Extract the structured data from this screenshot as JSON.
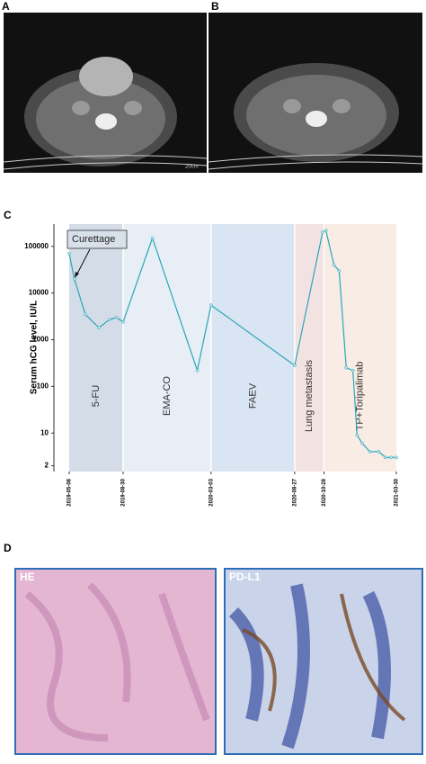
{
  "panel_labels": [
    "A",
    "B",
    "C",
    "D"
  ],
  "images": {
    "scale_text": "20cm",
    "he_label": "HE",
    "pdl1_label": "PD-L1"
  },
  "chart_data": {
    "type": "line",
    "y_label": "Serum hCG level, IU/L",
    "annotation": "Curettage",
    "log_scale": true,
    "xlim": [
      "2019-05-08",
      "2021-03-30"
    ],
    "xticks": [
      "2019-05-08",
      "2019-08-30",
      "2020-03-03",
      "2020-08-27",
      "2020-10-28",
      "2021-03-30"
    ],
    "ylim": [
      1.5,
      300000
    ],
    "yticks": [
      2,
      10,
      100,
      1000,
      10000,
      100000
    ],
    "phases": [
      {
        "name": "5-FU",
        "start": "2019-05-08",
        "end": "2019-08-30",
        "color": "#d3dce7"
      },
      {
        "name": "EMA-CO",
        "start": "2019-08-30",
        "end": "2020-03-03",
        "color": "#e7eef6"
      },
      {
        "name": "FAEV",
        "start": "2020-03-03",
        "end": "2020-08-27",
        "color": "#d9e5f2"
      },
      {
        "name": "Lung metastasis",
        "start": "2020-08-27",
        "end": "2020-10-28",
        "color": "#f3e2e2"
      },
      {
        "name": "TP+Toripalimab",
        "start": "2020-10-28",
        "end": "2021-03-30",
        "color": "#f8ece5"
      }
    ],
    "x": [
      "2019-05-08",
      "2019-05-19",
      "2019-06-11",
      "2019-07-10",
      "2019-08-01",
      "2019-08-16",
      "2019-08-30",
      "2019-10-31",
      "2020-02-03",
      "2020-03-03",
      "2020-08-27",
      "2020-10-25",
      "2020-11-01",
      "2020-11-18",
      "2020-11-29",
      "2020-12-14",
      "2020-12-28",
      "2021-01-06",
      "2021-01-17",
      "2021-02-02",
      "2021-02-21",
      "2021-03-07",
      "2021-03-19",
      "2021-03-30"
    ],
    "series": [
      {
        "color": "#2aa6b8",
        "values": [
          70000,
          20000,
          3500,
          1800,
          2700,
          3000,
          2400,
          150000,
          220,
          5500,
          280,
          200000,
          220000,
          40000,
          30000,
          250,
          220,
          9,
          6,
          4,
          4,
          3,
          3,
          3
        ]
      }
    ]
  }
}
